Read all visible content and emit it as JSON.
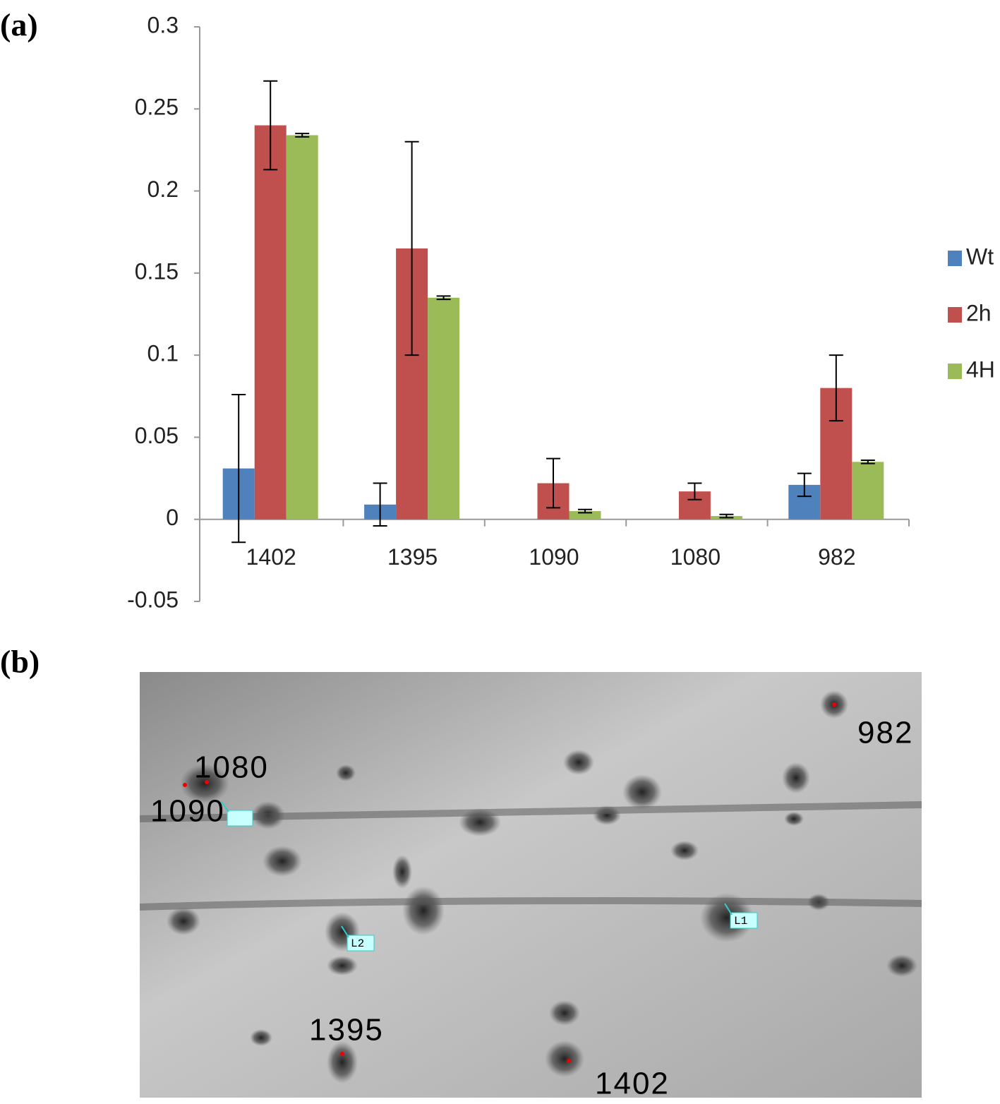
{
  "panel_labels": [
    "(a)",
    "(b)"
  ],
  "chart_data": {
    "type": "bar",
    "categories": [
      "1402",
      "1395",
      "1090",
      "1080",
      "982"
    ],
    "series": [
      {
        "name": "Wt",
        "color": "#4f81bd",
        "values": [
          0.031,
          0.009,
          null,
          null,
          0.021
        ],
        "errors": [
          0.045,
          0.013,
          null,
          null,
          0.007
        ]
      },
      {
        "name": "2h",
        "color": "#c0504d",
        "values": [
          0.24,
          0.165,
          0.022,
          0.017,
          0.08
        ],
        "errors": [
          0.027,
          0.065,
          0.015,
          0.005,
          0.02
        ]
      },
      {
        "name": "4H",
        "color": "#9bbb59",
        "values": [
          0.234,
          0.135,
          0.005,
          0.002,
          0.035
        ],
        "errors": [
          0.001,
          0.001,
          0.001,
          0.001,
          0.001
        ]
      }
    ],
    "ylim": [
      -0.05,
      0.3
    ],
    "yticks": [
      0.3,
      0.25,
      0.2,
      0.15,
      0.1,
      0.05,
      0,
      -0.05
    ],
    "grid": false,
    "legend": "right"
  },
  "gel": {
    "spot_labels": [
      "982",
      "1080",
      "1090",
      "1395",
      "1402"
    ],
    "markers": [
      "L1",
      "L2"
    ]
  }
}
